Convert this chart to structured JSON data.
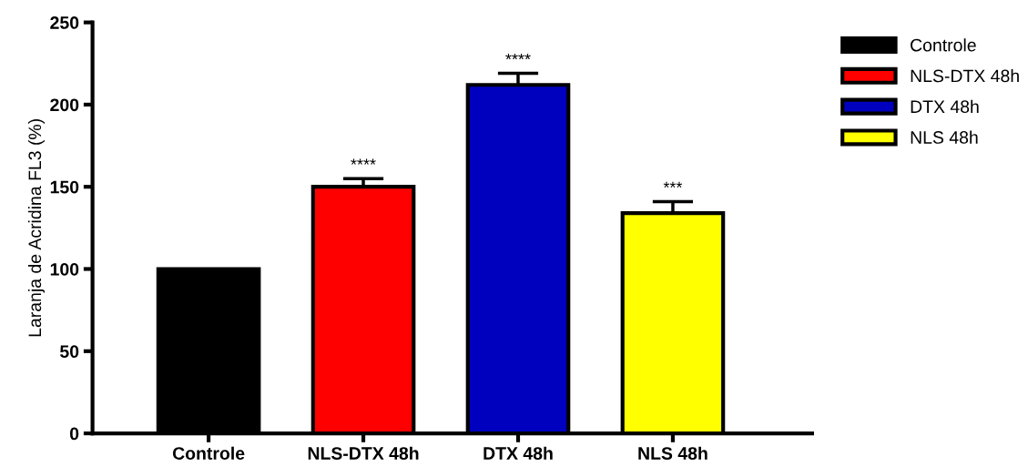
{
  "chart_data": {
    "type": "bar",
    "ylabel": "Laranja de Acridina FL3 (%)",
    "categories": [
      "Controle",
      "NLS-DTX 48h",
      "DTX 48h",
      "NLS 48h"
    ],
    "series": [
      {
        "name": "Controle",
        "color": "#000000",
        "values": [
          100,
          null,
          null,
          null
        ]
      },
      {
        "name": "NLS-DTX 48h",
        "color": "#ff0000",
        "values": [
          null,
          150,
          null,
          null
        ],
        "errors": [
          null,
          5,
          null,
          null
        ]
      },
      {
        "name": "DTX 48h",
        "color": "#0000bf",
        "values": [
          null,
          null,
          212,
          null
        ],
        "errors": [
          null,
          null,
          7,
          null
        ]
      },
      {
        "name": "NLS 48h",
        "color": "#ffff00",
        "values": [
          null,
          null,
          null,
          134
        ],
        "errors": [
          null,
          null,
          null,
          7
        ]
      }
    ],
    "ylim": [
      0,
      250
    ],
    "yticks": [
      0,
      50,
      100,
      150,
      200,
      250
    ],
    "grid": false,
    "legend": "top right",
    "annotations": [
      "****",
      "****",
      "***"
    ]
  }
}
